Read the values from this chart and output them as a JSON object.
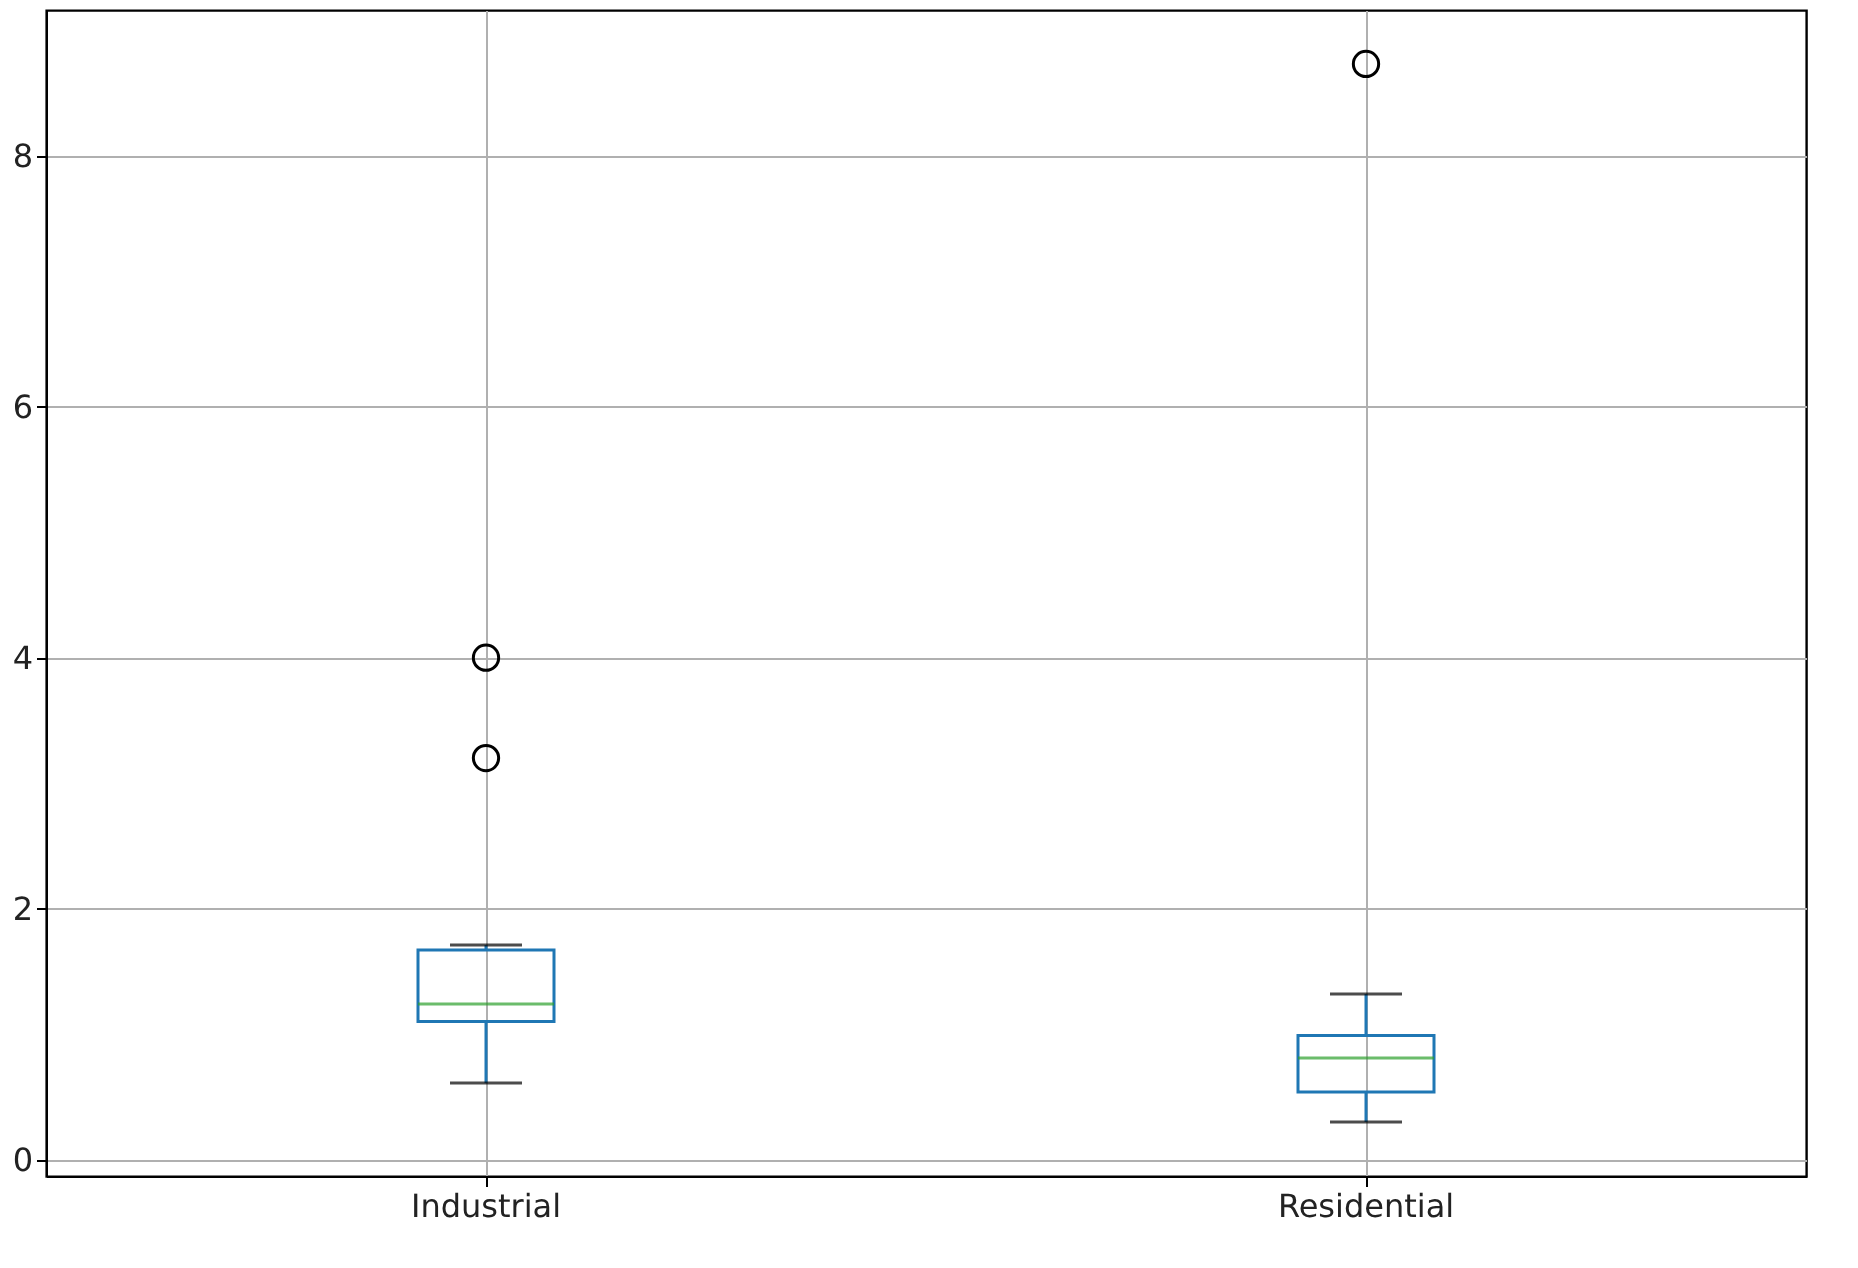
{
  "chart_data": {
    "type": "box",
    "categories": [
      "Industrial",
      "Residential"
    ],
    "boxes": [
      {
        "low": 0.61,
        "q1": 1.1,
        "median": 1.24,
        "q3": 1.67,
        "high": 1.71,
        "outliers": [
          4.0,
          3.2
        ]
      },
      {
        "low": 0.3,
        "q1": 0.54,
        "median": 0.81,
        "q3": 0.99,
        "high": 1.32,
        "outliers": [
          8.73
        ]
      }
    ],
    "ylim": [
      -0.13,
      9.16
    ],
    "yticks": [
      0,
      2,
      4,
      6,
      8
    ],
    "grid": true
  }
}
